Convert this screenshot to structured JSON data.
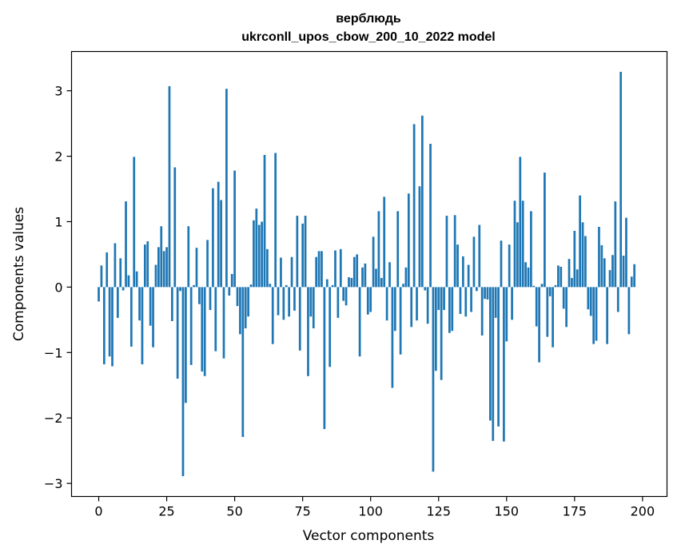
{
  "chart_data": {
    "type": "bar",
    "title": "верблюдь",
    "subtitle": "ukrconll_upos_cbow_200_10_2022 model",
    "xlabel": "Vector components",
    "ylabel": "Components values",
    "xlim": [
      -10,
      209
    ],
    "ylim": [
      -3.2,
      3.6
    ],
    "xticks": [
      0,
      25,
      50,
      75,
      100,
      125,
      150,
      175,
      200
    ],
    "yticks": [
      -3,
      -2,
      -1,
      0,
      1,
      2,
      3
    ],
    "ytick_labels": [
      "−3",
      "−2",
      "−1",
      "0",
      "1",
      "2",
      "3"
    ],
    "color": "#1f77b4",
    "values": [
      -0.22,
      0.33,
      -1.18,
      0.53,
      -1.06,
      -1.21,
      0.67,
      -0.47,
      0.44,
      -0.05,
      1.31,
      0.18,
      -0.91,
      1.99,
      0.24,
      -0.51,
      -1.18,
      0.65,
      0.7,
      -0.59,
      -0.92,
      0.34,
      0.61,
      0.93,
      0.55,
      0.61,
      3.07,
      -0.52,
      1.83,
      -1.4,
      -0.06,
      -2.89,
      -1.77,
      0.93,
      -1.19,
      0.03,
      0.6,
      -0.26,
      -1.29,
      -1.36,
      0.72,
      -0.35,
      1.51,
      -0.98,
      1.61,
      1.33,
      -1.09,
      3.03,
      -0.13,
      0.2,
      1.78,
      -0.29,
      -0.72,
      -2.29,
      -0.63,
      -0.45,
      0.04,
      1.02,
      1.2,
      0.95,
      1.0,
      2.02,
      0.58,
      0.05,
      -0.87,
      2.05,
      -0.43,
      0.45,
      -0.5,
      0.03,
      -0.45,
      0.46,
      -0.36,
      1.09,
      -0.97,
      0.97,
      1.09,
      -1.36,
      -0.45,
      -0.63,
      0.46,
      0.55,
      0.55,
      -2.17,
      0.12,
      -1.22,
      0.03,
      0.56,
      -0.47,
      0.58,
      -0.21,
      -0.28,
      0.15,
      0.14,
      0.46,
      0.5,
      -1.06,
      0.3,
      0.36,
      -0.42,
      -0.38,
      0.77,
      0.28,
      1.16,
      0.14,
      1.38,
      -0.51,
      0.38,
      -1.54,
      -0.67,
      1.16,
      -1.03,
      0.05,
      0.3,
      1.43,
      -0.61,
      2.49,
      -0.51,
      1.54,
      2.62,
      -0.05,
      -0.56,
      2.19,
      -2.82,
      -1.28,
      -0.35,
      -1.42,
      -0.35,
      1.09,
      -0.7,
      -0.67,
      1.1,
      0.65,
      -0.41,
      0.47,
      -0.45,
      0.34,
      -0.38,
      0.77,
      -0.06,
      0.95,
      -0.74,
      -0.18,
      -0.19,
      -2.04,
      -2.35,
      -0.47,
      -2.13,
      0.71,
      -2.36,
      -0.83,
      0.65,
      -0.5,
      1.32,
      0.99,
      1.99,
      1.32,
      0.38,
      0.3,
      1.16,
      0.02,
      -0.6,
      -1.15,
      0.05,
      1.75,
      -0.76,
      -0.14,
      -0.92,
      0.03,
      0.33,
      0.31,
      -0.33,
      -0.61,
      0.43,
      0.14,
      0.86,
      0.27,
      1.4,
      0.99,
      0.78,
      -0.34,
      -0.44,
      -0.87,
      -0.82,
      0.92,
      0.64,
      0.44,
      -0.87,
      0.26,
      0.49,
      1.31,
      -0.38,
      3.29,
      0.48,
      1.06,
      -0.72,
      0.16,
      0.35
    ]
  }
}
